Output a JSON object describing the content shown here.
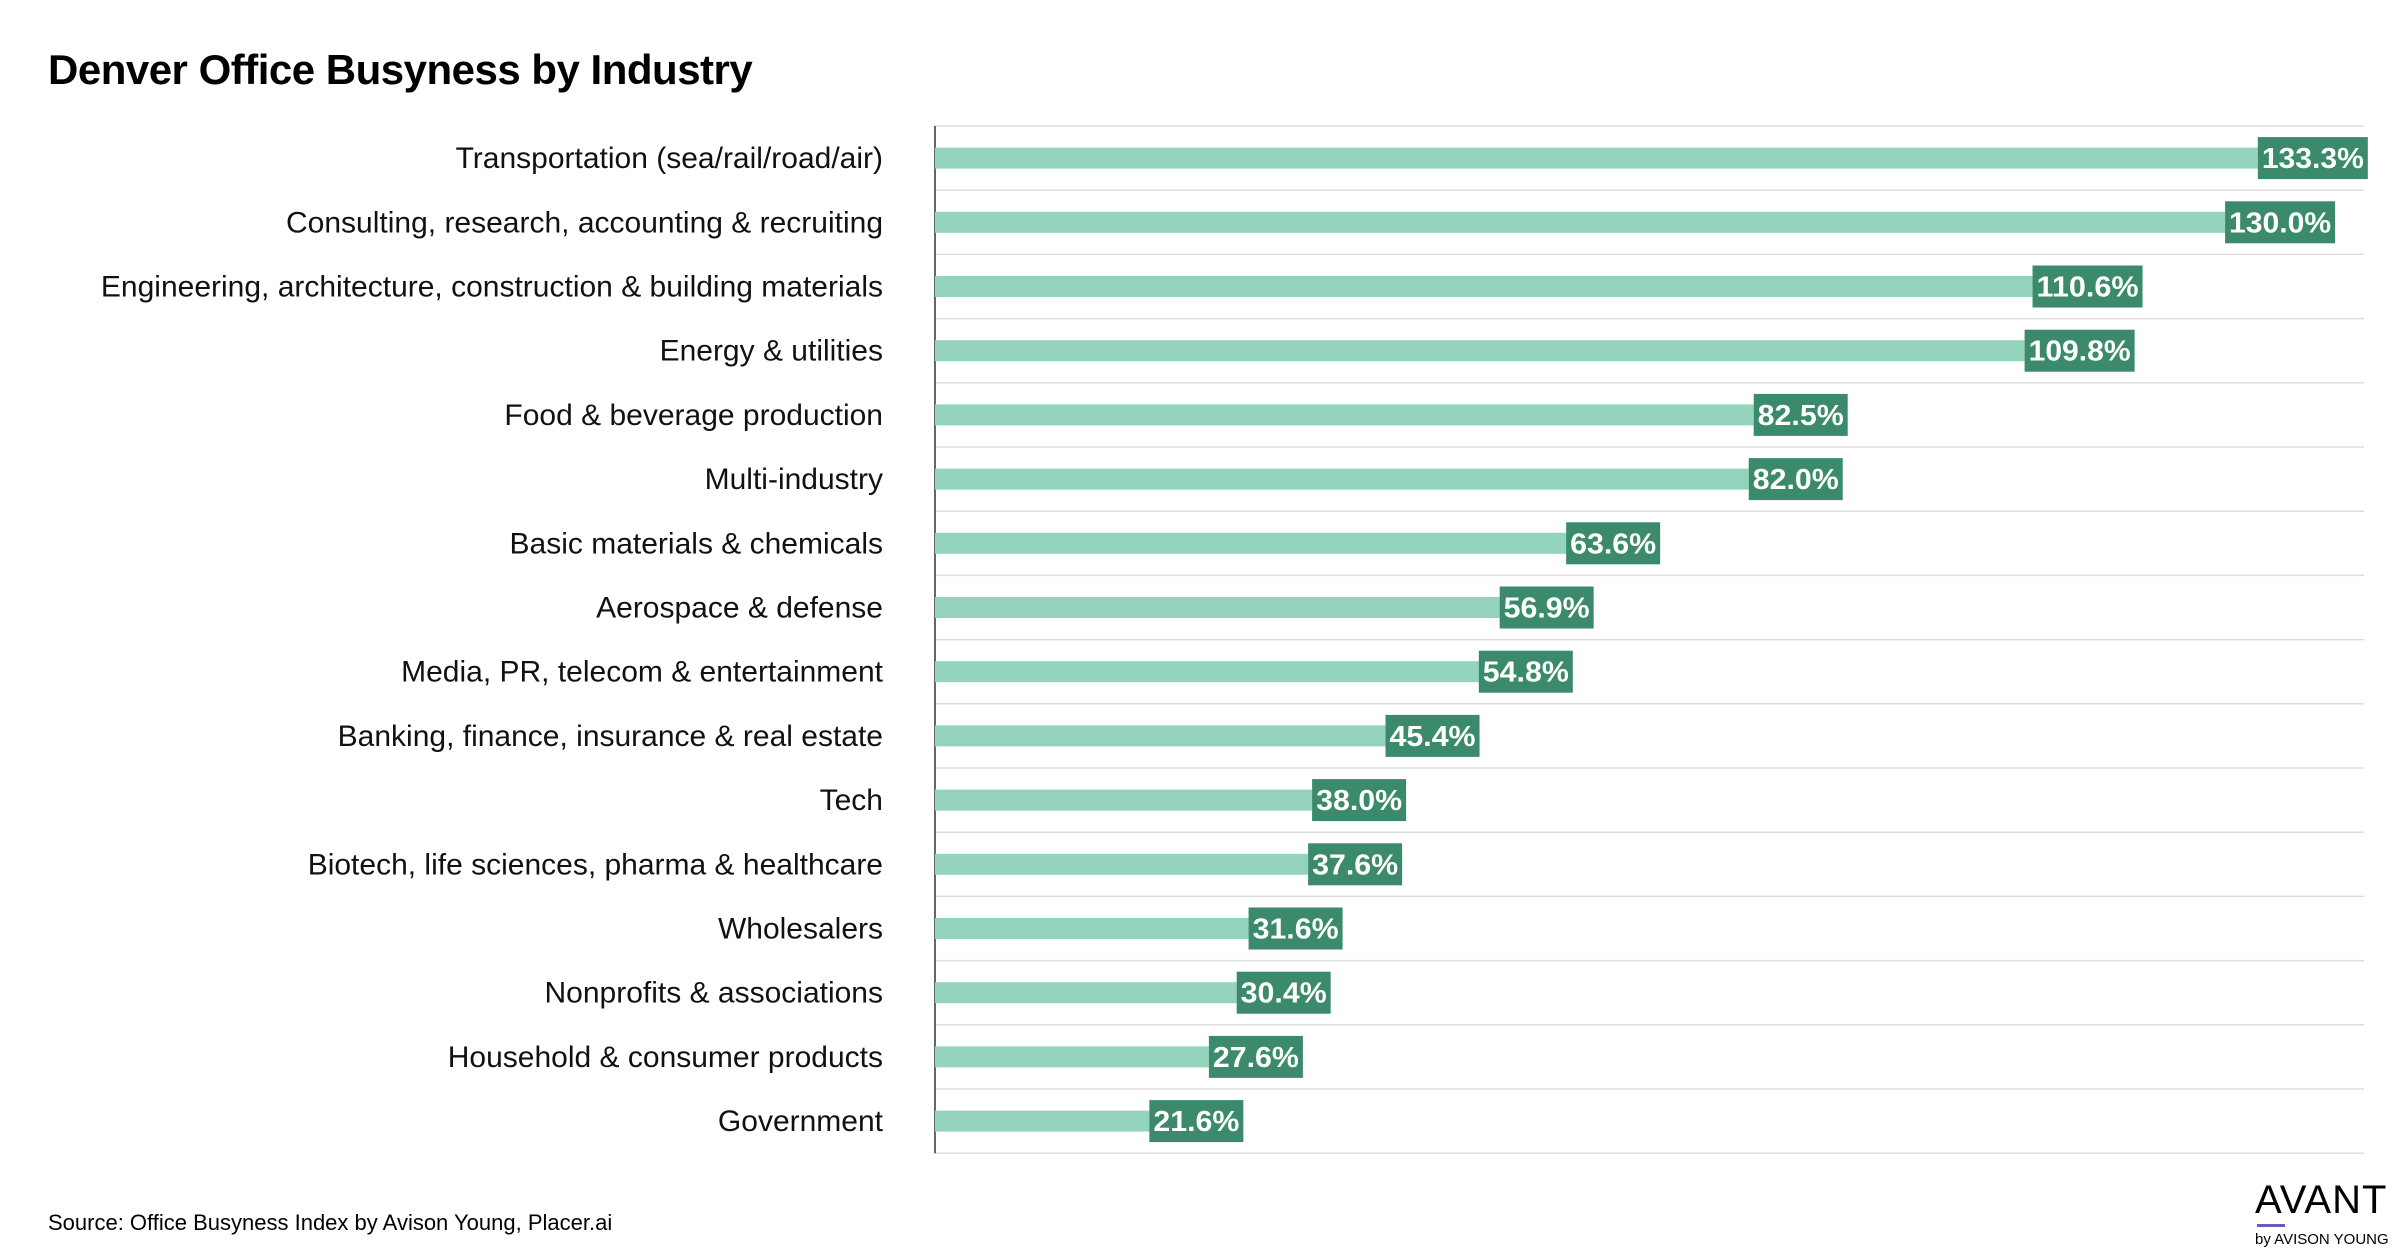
{
  "title": "Denver Office Busyness by Industry",
  "source": "Source: Office Busyness Index by Avison Young, Placer.ai",
  "logo": {
    "main": "AVANT",
    "sub": "by AVISON YOUNG",
    "accent": "#6b5fb5"
  },
  "colors": {
    "bar": "#94d4bc",
    "label_box": "#3a8a6b",
    "label_text": "#ffffff",
    "grid": "#dddddd"
  },
  "chart_data": {
    "type": "bar",
    "orientation": "horizontal",
    "title": "Denver Office Busyness by Industry",
    "categories": [
      "Transportation (sea/rail/road/air)",
      "Consulting, research, accounting & recruiting",
      "Engineering, architecture, construction & building materials",
      "Energy & utilities",
      "Food & beverage production",
      "Multi-industry",
      "Basic materials & chemicals",
      "Aerospace & defense",
      "Media, PR, telecom & entertainment",
      "Banking, finance, insurance & real estate",
      "Tech",
      "Biotech, life sciences, pharma & healthcare",
      "Wholesalers",
      "Nonprofits & associations",
      "Household & consumer products",
      "Government"
    ],
    "values": [
      133.3,
      130.0,
      110.6,
      109.8,
      82.5,
      82.0,
      63.6,
      56.9,
      54.8,
      45.4,
      38.0,
      37.6,
      31.6,
      30.4,
      27.6,
      21.6
    ],
    "data_labels": [
      "133.3%",
      "130.0%",
      "110.6%",
      "109.8%",
      "82.5%",
      "82.0%",
      "63.6%",
      "56.9%",
      "54.8%",
      "45.4%",
      "38.0%",
      "37.6%",
      "31.6%",
      "30.4%",
      "27.6%",
      "21.6%"
    ],
    "xlim": [
      0,
      144
    ],
    "grid": true,
    "legend": "none"
  }
}
